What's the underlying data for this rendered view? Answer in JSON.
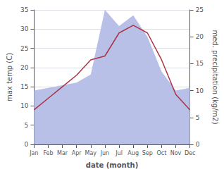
{
  "chart_data": {
    "type": "line",
    "xlabel": "date (month)",
    "ylabel": "max temp (C)",
    "y2label": "med. precipitation (kg/m2)",
    "categories": [
      "Jan",
      "Feb",
      "Mar",
      "Apr",
      "May",
      "Jun",
      "Jul",
      "Aug",
      "Sep",
      "Oct",
      "Nov",
      "Dec"
    ],
    "series": [
      {
        "type": "area",
        "color": "#b8c0e8",
        "axis": "y2",
        "values": [
          10.0,
          10.5,
          11.0,
          11.5,
          13.0,
          25.0,
          22.0,
          24.0,
          20.0,
          13.5,
          10.0,
          10.5
        ]
      },
      {
        "type": "line",
        "color": "#aa3344",
        "values": [
          9.0,
          12.0,
          15.0,
          18.0,
          22.0,
          23.0,
          29.0,
          31.0,
          29.0,
          22.0,
          13.0,
          9.0
        ]
      }
    ],
    "ylim": [
      0,
      35
    ],
    "yticks": [
      0,
      5,
      10,
      15,
      20,
      25,
      30,
      35
    ],
    "y2lim": [
      0,
      25
    ],
    "y2ticks": [
      0,
      5,
      10,
      15,
      20,
      25
    ],
    "grid": true
  }
}
